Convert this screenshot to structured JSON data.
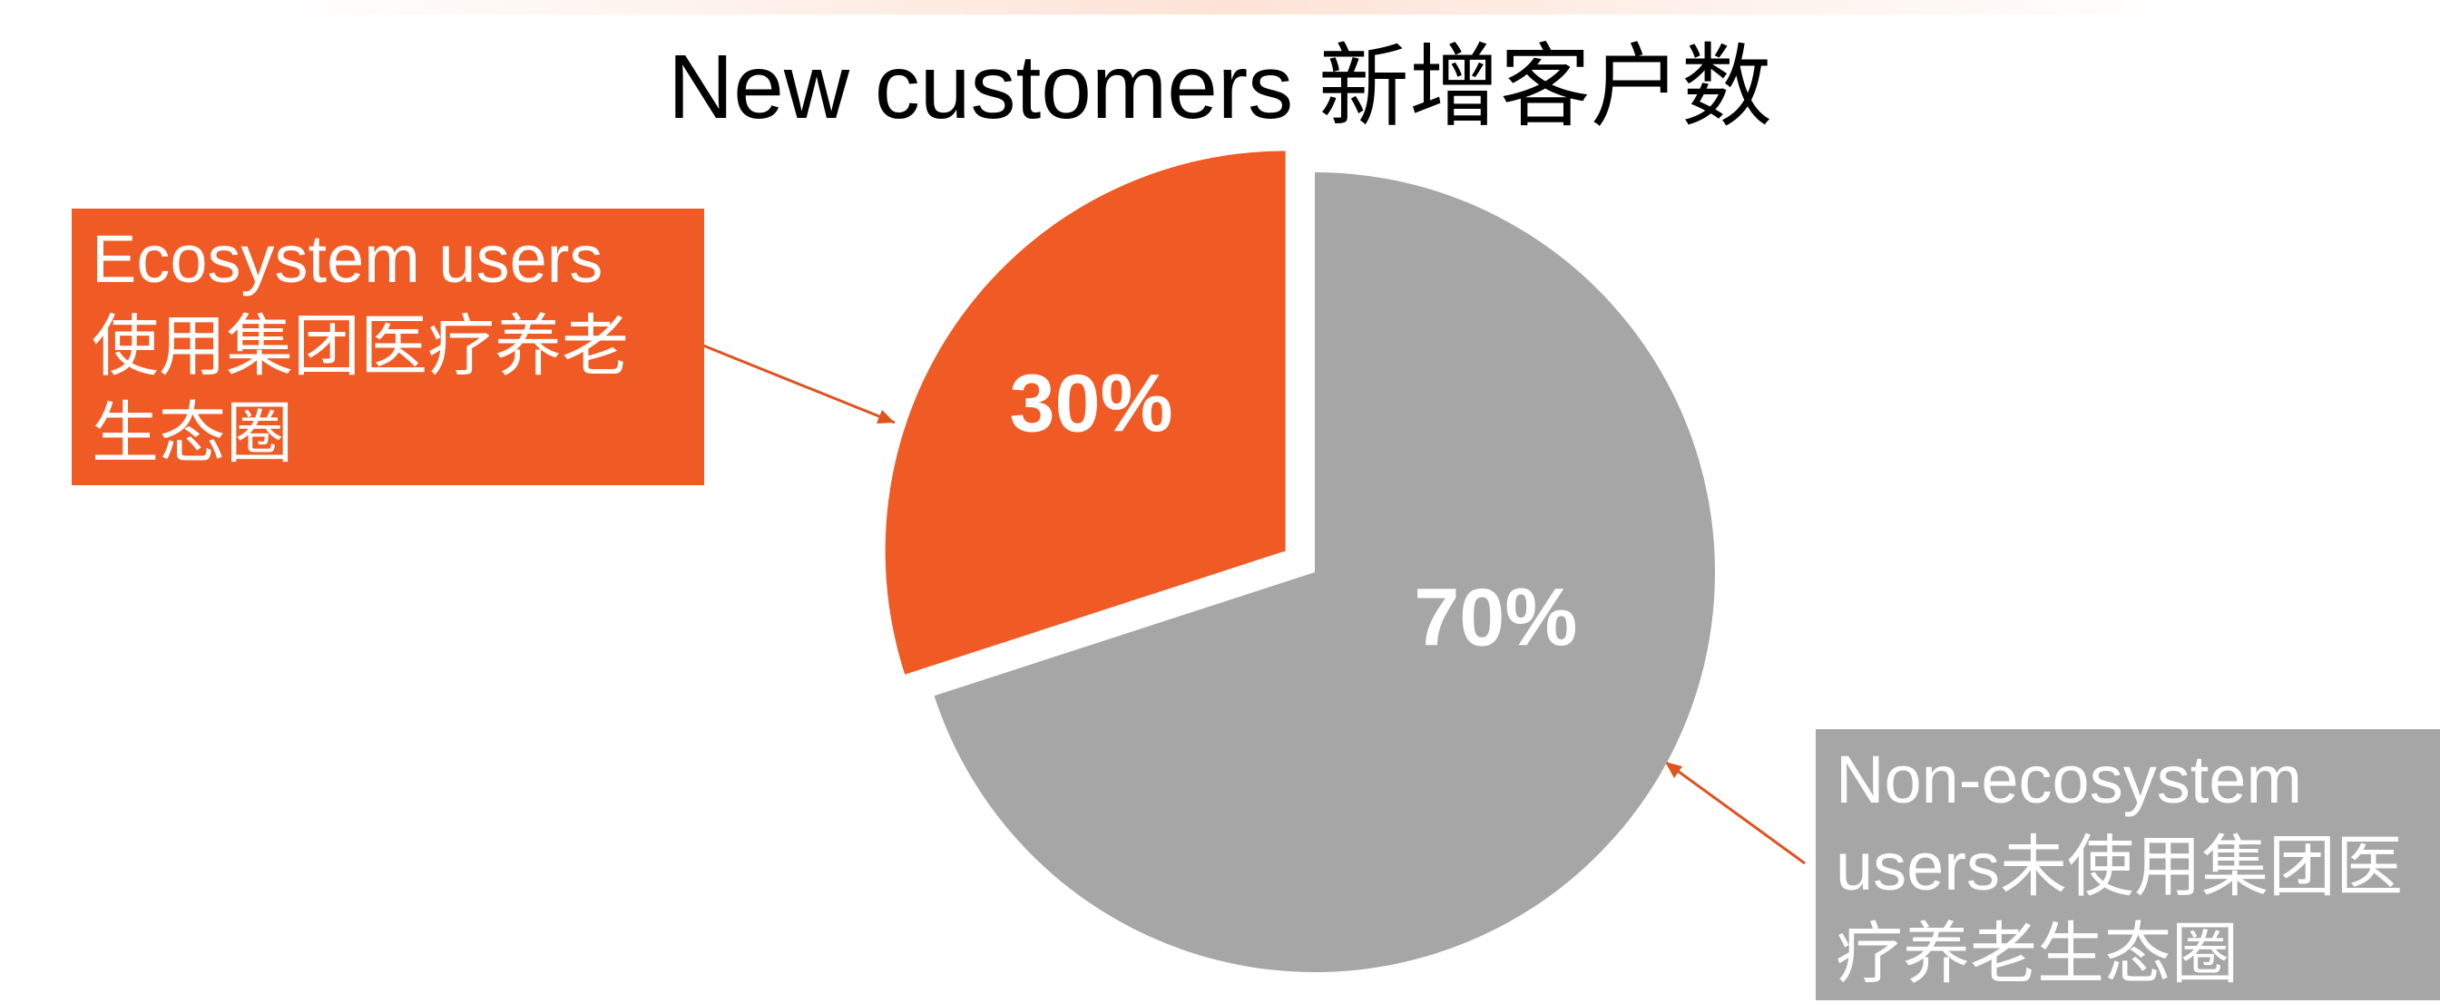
{
  "chart_data": {
    "type": "pie",
    "title": "New customers 新增客户数",
    "categories": [
      "Ecosystem users 使用集团医疗养老生态圈",
      "Non-ecosystem users未使用集团医疗养老生态圈"
    ],
    "values": [
      30,
      70
    ],
    "value_labels": [
      "30%",
      "70%"
    ],
    "colors": [
      "#f05a24",
      "#a6a6a6"
    ]
  }
}
